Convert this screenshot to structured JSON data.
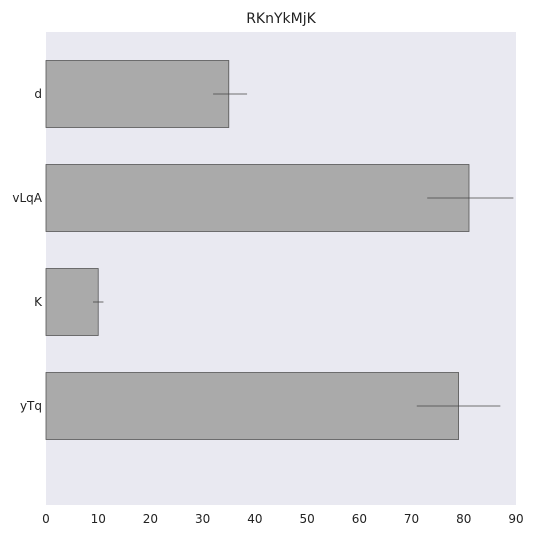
{
  "chart_data": {
    "type": "bar",
    "orientation": "horizontal",
    "title": "RKnYkMjK",
    "xlabel": "",
    "ylabel": "",
    "categories": [
      "d",
      "vLqA",
      "K",
      "yTq"
    ],
    "values": [
      35,
      81,
      10,
      79
    ],
    "errors": [
      {
        "low": 32,
        "high": 38.5
      },
      {
        "low": 73,
        "high": 89.5
      },
      {
        "low": 9,
        "high": 11
      },
      {
        "low": 71,
        "high": 87
      }
    ],
    "xlim": [
      0,
      90
    ],
    "xticks": [
      0,
      10,
      20,
      30,
      40,
      50,
      60,
      70,
      80,
      90
    ],
    "grid": false,
    "legend": "none",
    "colors": {
      "plot_background": "#e9e9f1",
      "bar_fill": "#aaaaaa",
      "bar_edge": "#555555",
      "error_bar": "#444444"
    }
  }
}
